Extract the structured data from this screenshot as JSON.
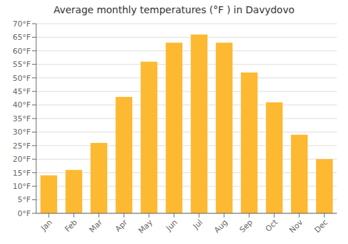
{
  "chart_data": {
    "type": "bar",
    "title": "Average monthly temperatures (°F ) in Davydovo",
    "categories": [
      "Jan",
      "Feb",
      "Mar",
      "Apr",
      "May",
      "Jun",
      "Jul",
      "Aug",
      "Sep",
      "Oct",
      "Nov",
      "Dec"
    ],
    "values": [
      14,
      16,
      26,
      43,
      56,
      63,
      66,
      63,
      52,
      41,
      29,
      20
    ],
    "color": "#FDB931",
    "ylim": [
      0,
      70
    ],
    "yticks": [
      {
        "value": 0,
        "label": "0°F"
      },
      {
        "value": 5,
        "label": "5°F"
      },
      {
        "value": 10,
        "label": "10°F"
      },
      {
        "value": 15,
        "label": "15°F"
      },
      {
        "value": 20,
        "label": "20°F"
      },
      {
        "value": 25,
        "label": "25°F"
      },
      {
        "value": 30,
        "label": "30°F"
      },
      {
        "value": 35,
        "label": "35°F"
      },
      {
        "value": 40,
        "label": "40°F"
      },
      {
        "value": 45,
        "label": "45°F"
      },
      {
        "value": 50,
        "label": "50°F"
      },
      {
        "value": 55,
        "label": "55°F"
      },
      {
        "value": 60,
        "label": "60°F"
      },
      {
        "value": 65,
        "label": "65°F"
      },
      {
        "value": 70,
        "label": "70°F"
      }
    ],
    "grid": true
  }
}
